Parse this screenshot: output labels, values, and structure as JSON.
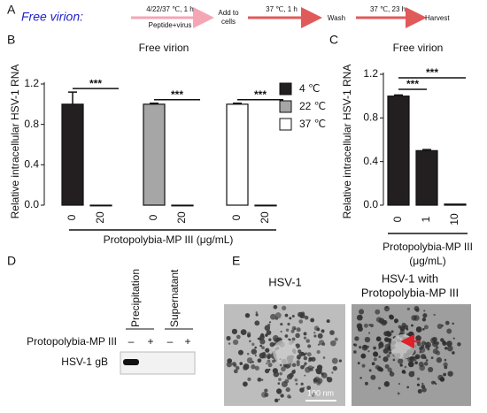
{
  "panel_a": {
    "label": "A",
    "title": "Free virion:",
    "steps": [
      {
        "above": "4/22/37 ℃, 1 h",
        "below": "Peptide+virus"
      },
      {
        "text": [
          "Add to",
          "cells"
        ]
      },
      {
        "above": "37 ℃, 1 h"
      },
      {
        "text": [
          "Wash"
        ]
      },
      {
        "above": "37 ℃, 23 h"
      },
      {
        "text": [
          "Harvest"
        ]
      }
    ]
  },
  "chart_data": [
    {
      "panel": "B",
      "type": "bar",
      "title": "Free virion",
      "ylabel": "Relative intracellular HSV-1 RNA",
      "xlabel": "Protopolybia-MP III (μg/mL)",
      "categories": [
        "0",
        "20"
      ],
      "series": [
        {
          "name": "4 ℃",
          "color": "#231f20",
          "values": [
            1.0,
            0.0
          ],
          "errors": [
            0.12,
            0.0
          ]
        },
        {
          "name": "22 ℃",
          "color": "#a6a6a6",
          "values": [
            1.0,
            0.0
          ],
          "errors": [
            0.01,
            0.0
          ]
        },
        {
          "name": "37 ℃",
          "color": "#ffffff",
          "values": [
            1.0,
            0.0
          ],
          "errors": [
            0.01,
            0.0
          ]
        }
      ],
      "annotations": [
        "***",
        "***",
        "***"
      ],
      "ylim": [
        0,
        1.2
      ],
      "yticks": [
        {
          "value": 0,
          "label": "0.0"
        },
        0.4,
        0.8,
        1.2
      ]
    },
    {
      "panel": "C",
      "type": "bar",
      "title": "Free virion",
      "ylabel": "Relative intracellular HSV-1 RNA",
      "xlabel": [
        "Protopolybia-MP III",
        "(μg/mL)"
      ],
      "categories": [
        "0",
        "1",
        "10"
      ],
      "values": [
        1.0,
        0.5,
        0.01
      ],
      "errors": [
        0.01,
        0.01,
        0.0
      ],
      "color": "#231f20",
      "annotations": [
        "***",
        "***"
      ],
      "ylim": [
        0,
        1.2
      ],
      "yticks": [
        {
          "value": 0,
          "label": "0.0"
        },
        0.4,
        0.8,
        1.2
      ]
    }
  ],
  "panel_d": {
    "label": "D",
    "columns": [
      "Precipitation",
      "Supernatant"
    ],
    "row_labels": [
      "Protopolybia-MP III",
      "HSV-1 gB"
    ],
    "signs": [
      "–",
      "+",
      "–",
      "+"
    ]
  },
  "panel_e": {
    "label": "E",
    "images": [
      {
        "title": [
          "HSV-1"
        ]
      },
      {
        "title": [
          "HSV-1 with",
          "Protopolybia-MP III"
        ]
      }
    ],
    "scale_bar": "100 nm"
  }
}
